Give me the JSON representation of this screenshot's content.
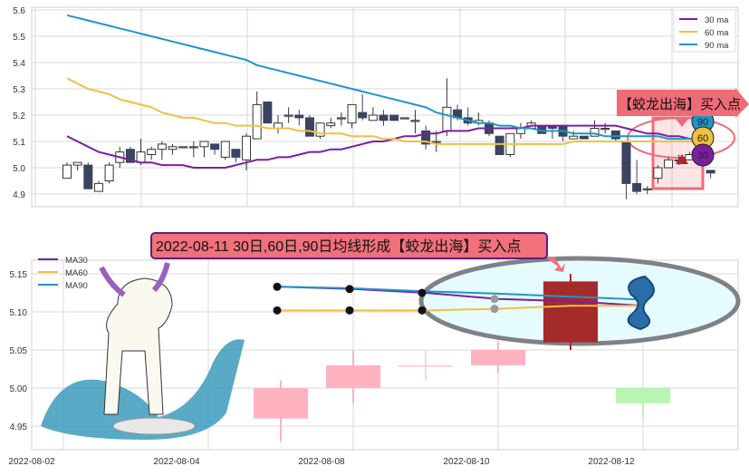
{
  "chart_data": [
    {
      "type": "candlestick",
      "ylim": [
        4.87,
        5.61
      ],
      "yticks": [
        "5.6",
        "5.5",
        "5.4",
        "5.3",
        "5.2",
        "5.1",
        "5.0",
        "4.9"
      ],
      "grid": true,
      "legend_placement": "top-right",
      "ohlc": [
        [
          4.96,
          5.02,
          4.96,
          5.01
        ],
        [
          5.01,
          5.02,
          4.99,
          5.02
        ],
        [
          5.01,
          5.02,
          4.92,
          4.92
        ],
        [
          4.91,
          4.95,
          4.91,
          4.94
        ],
        [
          4.95,
          5.02,
          4.94,
          5.01
        ],
        [
          5.02,
          5.08,
          5.0,
          5.06
        ],
        [
          5.07,
          5.08,
          5.02,
          5.02
        ],
        [
          5.02,
          5.11,
          5.01,
          5.06
        ],
        [
          5.05,
          5.08,
          5.03,
          5.07
        ],
        [
          5.07,
          5.1,
          5.03,
          5.09
        ],
        [
          5.07,
          5.09,
          5.05,
          5.08
        ],
        [
          5.08,
          5.08,
          5.08,
          5.08
        ],
        [
          5.08,
          5.1,
          5.04,
          5.08
        ],
        [
          5.08,
          5.1,
          5.04,
          5.1
        ],
        [
          5.09,
          5.09,
          5.05,
          5.07
        ],
        [
          5.04,
          5.1,
          5.03,
          5.1
        ],
        [
          5.07,
          5.07,
          5.02,
          5.04
        ],
        [
          5.03,
          5.13,
          4.99,
          5.12
        ],
        [
          5.11,
          5.29,
          5.11,
          5.24
        ],
        [
          5.25,
          5.25,
          5.17,
          5.17
        ],
        [
          5.15,
          5.2,
          5.13,
          5.17
        ],
        [
          5.2,
          5.23,
          5.17,
          5.2
        ],
        [
          5.2,
          5.22,
          5.16,
          5.19
        ],
        [
          5.19,
          5.2,
          5.12,
          5.12
        ],
        [
          5.12,
          5.17,
          5.11,
          5.17
        ],
        [
          5.16,
          5.19,
          5.15,
          5.17
        ],
        [
          5.19,
          5.21,
          5.16,
          5.19
        ],
        [
          5.17,
          5.24,
          5.15,
          5.24
        ],
        [
          5.21,
          5.28,
          5.18,
          5.19
        ],
        [
          5.18,
          5.23,
          5.18,
          5.2
        ],
        [
          5.2,
          5.22,
          5.16,
          5.18
        ],
        [
          5.2,
          5.2,
          5.18,
          5.18
        ],
        [
          5.19,
          5.19,
          5.19,
          5.19
        ],
        [
          5.18,
          5.22,
          5.13,
          5.18
        ],
        [
          5.14,
          5.16,
          5.07,
          5.09
        ],
        [
          5.1,
          5.14,
          5.06,
          5.1
        ],
        [
          5.14,
          5.34,
          5.12,
          5.23
        ],
        [
          5.22,
          5.24,
          5.18,
          5.19
        ],
        [
          5.19,
          5.23,
          5.16,
          5.17
        ],
        [
          5.17,
          5.21,
          5.16,
          5.18
        ],
        [
          5.17,
          5.18,
          5.12,
          5.13
        ],
        [
          5.12,
          5.12,
          5.05,
          5.05
        ],
        [
          5.05,
          5.13,
          5.04,
          5.13
        ],
        [
          5.13,
          5.17,
          5.11,
          5.15
        ],
        [
          5.15,
          5.18,
          5.15,
          5.17
        ],
        [
          5.16,
          5.16,
          5.13,
          5.13
        ],
        [
          5.16,
          5.16,
          5.11,
          5.15
        ],
        [
          5.16,
          5.16,
          5.1,
          5.12
        ],
        [
          5.11,
          5.14,
          5.11,
          5.12
        ],
        [
          5.12,
          5.12,
          5.11,
          5.11
        ],
        [
          5.12,
          5.18,
          5.12,
          5.15
        ],
        [
          5.15,
          5.17,
          5.13,
          5.15
        ],
        [
          5.14,
          5.14,
          5.1,
          5.11
        ],
        [
          5.1,
          5.1,
          4.88,
          4.94
        ],
        [
          4.94,
          5.03,
          4.9,
          4.91
        ],
        [
          4.92,
          4.93,
          4.9,
          4.92
        ],
        [
          4.96,
          5.01,
          4.94,
          5.0
        ],
        [
          5.0,
          5.04,
          5.0,
          5.03
        ],
        [
          5.03,
          5.05,
          5.01,
          5.03
        ],
        [
          5.03,
          5.06,
          5.03,
          5.05
        ],
        [
          5.06,
          5.15,
          5.05,
          5.14
        ],
        [
          4.99,
          4.99,
          4.96,
          4.98
        ]
      ],
      "highlight_index": 60,
      "series": [
        {
          "name": "30 ma",
          "color": "#7b1fa2",
          "values": [
            5.12,
            5.1,
            5.08,
            5.06,
            5.05,
            5.04,
            5.03,
            5.02,
            5.02,
            5.01,
            5.01,
            5.01,
            5.0,
            5.0,
            5.0,
            5.0,
            5.01,
            5.02,
            5.03,
            5.03,
            5.04,
            5.04,
            5.05,
            5.06,
            5.06,
            5.07,
            5.07,
            5.08,
            5.09,
            5.1,
            5.1,
            5.11,
            5.12,
            5.12,
            5.13,
            5.13,
            5.14,
            5.14,
            5.14,
            5.15,
            5.15,
            5.15,
            5.15,
            5.15,
            5.16,
            5.16,
            5.16,
            5.16,
            5.16,
            5.16,
            5.16,
            5.16,
            5.16,
            5.15,
            5.14,
            5.13,
            5.13,
            5.12,
            5.12,
            5.11,
            5.11,
            5.11
          ]
        },
        {
          "name": "60 ma",
          "color": "#f0c040",
          "values": [
            5.34,
            5.32,
            5.3,
            5.29,
            5.28,
            5.26,
            5.25,
            5.24,
            5.23,
            5.21,
            5.2,
            5.19,
            5.19,
            5.18,
            5.17,
            5.17,
            5.16,
            5.16,
            5.16,
            5.15,
            5.15,
            5.15,
            5.14,
            5.14,
            5.13,
            5.13,
            5.13,
            5.12,
            5.12,
            5.12,
            5.11,
            5.11,
            5.1,
            5.1,
            5.1,
            5.09,
            5.09,
            5.09,
            5.09,
            5.09,
            5.09,
            5.09,
            5.09,
            5.09,
            5.09,
            5.09,
            5.09,
            5.09,
            5.1,
            5.1,
            5.1,
            5.1,
            5.1,
            5.1,
            5.1,
            5.1,
            5.1,
            5.1,
            5.1,
            5.1,
            5.1,
            5.1
          ]
        },
        {
          "name": "90 ma",
          "color": "#1f96c8",
          "values": [
            5.58,
            5.57,
            5.56,
            5.55,
            5.54,
            5.53,
            5.52,
            5.51,
            5.5,
            5.49,
            5.48,
            5.47,
            5.46,
            5.45,
            5.44,
            5.43,
            5.42,
            5.41,
            5.39,
            5.38,
            5.37,
            5.36,
            5.35,
            5.34,
            5.33,
            5.32,
            5.31,
            5.3,
            5.29,
            5.28,
            5.27,
            5.26,
            5.25,
            5.24,
            5.23,
            5.21,
            5.2,
            5.19,
            5.18,
            5.17,
            5.17,
            5.16,
            5.16,
            5.15,
            5.15,
            5.14,
            5.14,
            5.14,
            5.13,
            5.13,
            5.13,
            5.12,
            5.12,
            5.12,
            5.12,
            5.12,
            5.12,
            5.11,
            5.11,
            5.11,
            5.11,
            5.11
          ]
        }
      ],
      "annotation": {
        "label": "【蛟龙出海】买入点",
        "markers": [
          "90",
          "60",
          "30"
        ]
      }
    },
    {
      "type": "candlestick",
      "ylim": [
        4.915,
        5.175
      ],
      "yticks": [
        "5.15",
        "5.10",
        "5.05",
        "5.00",
        "4.95"
      ],
      "xticks": [
        "2022-08-02",
        "2022-08-04",
        "2022-08-08",
        "2022-08-10",
        "2022-08-12"
      ],
      "grid": true,
      "legend_placement": "top-left",
      "dates": [
        "2022-08-05",
        "2022-08-08",
        "2022-08-09",
        "2022-08-10",
        "2022-08-11",
        "2022-08-12"
      ],
      "ohlc": [
        [
          5.0,
          5.01,
          4.93,
          4.96
        ],
        [
          5.0,
          5.05,
          4.98,
          5.03
        ],
        [
          5.03,
          5.05,
          5.01,
          5.03
        ],
        [
          5.03,
          5.06,
          5.02,
          5.05
        ],
        [
          5.06,
          5.15,
          5.05,
          5.14
        ],
        [
          5.0,
          5.0,
          4.96,
          4.98
        ]
      ],
      "candle_colors": [
        "#ffb3c1",
        "#ffb3c1",
        "#ffd0d8",
        "#ffb3c1",
        "#a52a2a",
        "#b8f5b0"
      ],
      "series": [
        {
          "name": "MA30",
          "color": "#7b1fa2",
          "values": [
            5.133,
            5.13,
            5.125,
            5.117,
            5.114,
            5.108
          ]
        },
        {
          "name": "MA60",
          "color": "#f0c040",
          "values": [
            5.102,
            5.102,
            5.102,
            5.104,
            5.108,
            5.108
          ]
        },
        {
          "name": "MA90",
          "color": "#1f96c8",
          "values": [
            5.133,
            5.131,
            5.127,
            5.124,
            5.12,
            5.116
          ]
        }
      ],
      "annotation": {
        "label": "2022-08-11 30日,60日,90日均线形成【蛟龙出海】买入点"
      }
    }
  ]
}
